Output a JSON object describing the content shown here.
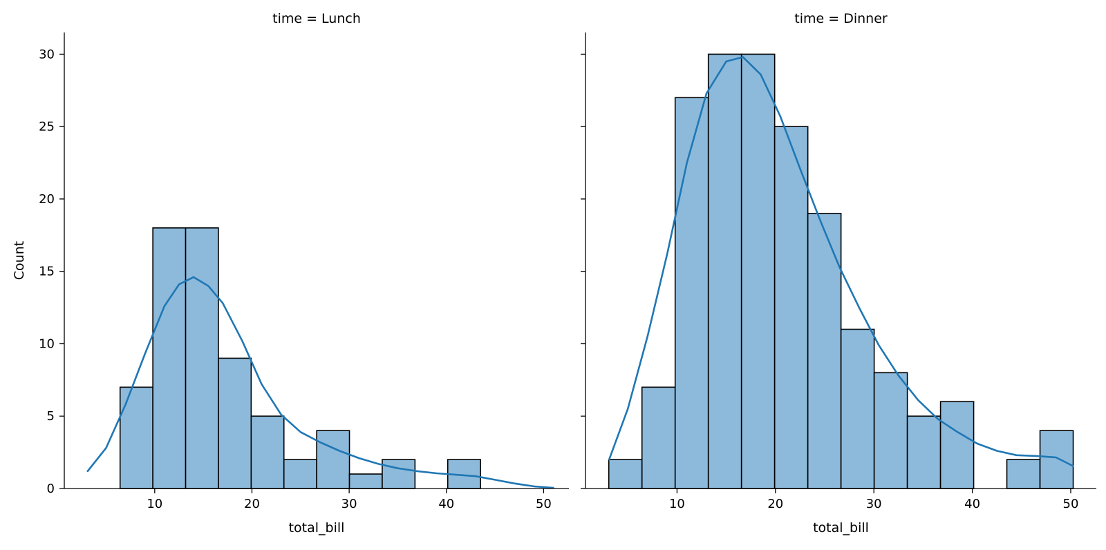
{
  "chart_data": {
    "type": "bar",
    "colors": {
      "bar_fill": "#8dbadb",
      "bar_edge": "#000000",
      "kde_line": "#1f77b4"
    },
    "grid": false,
    "legend": "none",
    "shared_y": true,
    "ylabel": "Count",
    "ylim": [
      0,
      31.5
    ],
    "yticks": [
      0,
      5,
      10,
      15,
      20,
      25,
      30
    ],
    "bin_edges": [
      3.07,
      6.44,
      9.81,
      13.18,
      16.55,
      19.92,
      23.29,
      26.66,
      30.03,
      33.4,
      36.77,
      40.14,
      43.51,
      46.88,
      50.25
    ],
    "facets": [
      {
        "title": "time = Lunch",
        "xlabel": "total_bill",
        "xlim": [
          0.7,
          52.6
        ],
        "xticks": [
          10,
          20,
          30,
          40,
          50
        ],
        "counts": [
          0,
          7,
          18,
          18,
          9,
          5,
          2,
          4,
          1,
          2,
          0,
          2,
          0,
          0
        ],
        "kde": {
          "x": [
            3.1,
            5,
            7,
            9,
            11,
            12.5,
            14,
            15.5,
            17,
            19,
            21,
            23,
            25,
            27,
            29,
            31,
            33,
            35,
            37,
            39,
            41,
            43,
            45,
            47,
            49,
            51
          ],
          "y": [
            1.2,
            2.8,
            5.8,
            9.3,
            12.6,
            14.1,
            14.6,
            14.0,
            12.8,
            10.2,
            7.2,
            5.1,
            3.9,
            3.2,
            2.6,
            2.1,
            1.7,
            1.4,
            1.2,
            1.05,
            0.95,
            0.85,
            0.6,
            0.35,
            0.15,
            0.05
          ]
        }
      },
      {
        "title": "time = Dinner",
        "xlabel": "total_bill",
        "xlim": [
          0.7,
          52.6
        ],
        "xticks": [
          10,
          20,
          30,
          40,
          50
        ],
        "counts": [
          2,
          7,
          27,
          30,
          30,
          25,
          19,
          11,
          8,
          5,
          6,
          0,
          2,
          4
        ],
        "kde": {
          "x": [
            3.1,
            5,
            7,
            9,
            11,
            13,
            15,
            16.7,
            18.5,
            20.5,
            22.5,
            24.5,
            26.5,
            28.5,
            30.5,
            32.5,
            34.5,
            36.5,
            38.5,
            40.5,
            42.5,
            44.5,
            46.5,
            48.5,
            50.25
          ],
          "y": [
            2.0,
            5.5,
            10.5,
            16.2,
            22.5,
            27.3,
            29.5,
            29.8,
            28.6,
            25.7,
            22.1,
            18.6,
            15.3,
            12.5,
            9.9,
            7.8,
            6.1,
            4.8,
            3.9,
            3.1,
            2.6,
            2.3,
            2.25,
            2.15,
            1.55
          ]
        }
      }
    ]
  }
}
